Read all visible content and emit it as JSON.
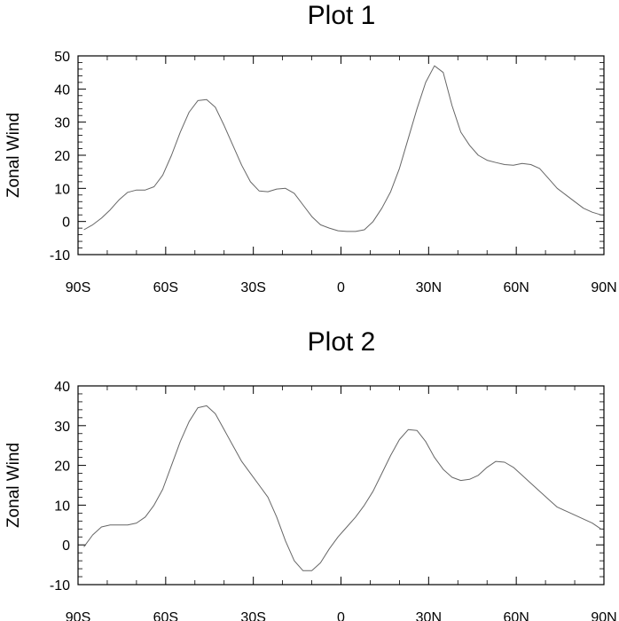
{
  "chart_data": [
    {
      "type": "line",
      "title": "Plot 1",
      "xlabel": "",
      "ylabel": "Zonal Wind",
      "xlim": [
        -90,
        90
      ],
      "ylim": [
        -10,
        50
      ],
      "x_ticks": [
        -90,
        -60,
        -30,
        0,
        30,
        60,
        90
      ],
      "x_tick_labels": [
        "90S",
        "60S",
        "30S",
        "0",
        "30N",
        "60N",
        "90N"
      ],
      "y_ticks": [
        -10,
        0,
        10,
        20,
        30,
        40,
        50
      ],
      "y_tick_labels": [
        "-10",
        "0",
        "10",
        "20",
        "30",
        "40",
        "50"
      ],
      "grid": false,
      "line_color": "#666666",
      "series": [
        {
          "x": [
            -88,
            -85,
            -82,
            -79,
            -76,
            -73,
            -70,
            -67,
            -64,
            -61,
            -58,
            -55,
            -52,
            -49,
            -46,
            -43,
            -40,
            -37,
            -34,
            -31,
            -28,
            -25,
            -22,
            -19,
            -16,
            -13,
            -10,
            -7,
            -4,
            -1,
            2,
            5,
            8,
            11,
            14,
            17,
            20,
            23,
            26,
            29,
            32,
            35,
            38,
            41,
            44,
            47,
            50,
            53,
            56,
            59,
            62,
            65,
            68,
            71,
            74,
            77,
            80,
            83,
            86,
            89
          ],
          "y": [
            -2.5,
            -1,
            1,
            3.5,
            6.5,
            8.8,
            9.5,
            9.5,
            10.5,
            14,
            20,
            27,
            33,
            36.5,
            36.8,
            34.5,
            29,
            23,
            17,
            12,
            9.2,
            9,
            9.8,
            10,
            8.5,
            5,
            1.5,
            -1,
            -2,
            -2.8,
            -3,
            -3,
            -2.5,
            0,
            4,
            9,
            16,
            25,
            34,
            42,
            47,
            45,
            35,
            27,
            23,
            20,
            18.5,
            17.8,
            17.2,
            17,
            17.5,
            17.2,
            16,
            13,
            10,
            8,
            6,
            4,
            2.8,
            2
          ]
        }
      ]
    },
    {
      "type": "line",
      "title": "Plot 2",
      "xlabel": "",
      "ylabel": "Zonal Wind",
      "xlim": [
        -90,
        90
      ],
      "ylim": [
        -10,
        40
      ],
      "x_ticks": [
        -90,
        -60,
        -30,
        0,
        30,
        60,
        90
      ],
      "x_tick_labels": [
        "90S",
        "60S",
        "30S",
        "0",
        "30N",
        "60N",
        "90N"
      ],
      "y_ticks": [
        -10,
        0,
        10,
        20,
        30,
        40
      ],
      "y_tick_labels": [
        "-10",
        "0",
        "10",
        "20",
        "30",
        "40"
      ],
      "grid": false,
      "line_color": "#666666",
      "series": [
        {
          "x": [
            -88,
            -85,
            -82,
            -79,
            -76,
            -73,
            -70,
            -67,
            -64,
            -61,
            -58,
            -55,
            -52,
            -49,
            -46,
            -43,
            -40,
            -37,
            -34,
            -31,
            -28,
            -25,
            -22,
            -19,
            -16,
            -13,
            -10,
            -7,
            -4,
            -1,
            2,
            5,
            8,
            11,
            14,
            17,
            20,
            23,
            26,
            29,
            32,
            35,
            38,
            41,
            44,
            47,
            50,
            53,
            56,
            59,
            62,
            65,
            68,
            71,
            74,
            77,
            80,
            83,
            86,
            89
          ],
          "y": [
            -0.5,
            2.5,
            4.5,
            5,
            5,
            5,
            5.5,
            7,
            10,
            14,
            20,
            26,
            31,
            34.5,
            35,
            33,
            29,
            25,
            21,
            18,
            15,
            12,
            7,
            1,
            -4,
            -6.5,
            -6.5,
            -4.5,
            -1,
            2,
            4.5,
            7,
            10,
            13.5,
            18,
            22.5,
            26.5,
            29,
            28.8,
            26,
            22,
            19,
            17,
            16.2,
            16.5,
            17.5,
            19.5,
            21,
            20.8,
            19.5,
            17.5,
            15.5,
            13.5,
            11.5,
            9.5,
            8.5,
            7.5,
            6.5,
            5.5,
            4
          ]
        }
      ]
    }
  ]
}
